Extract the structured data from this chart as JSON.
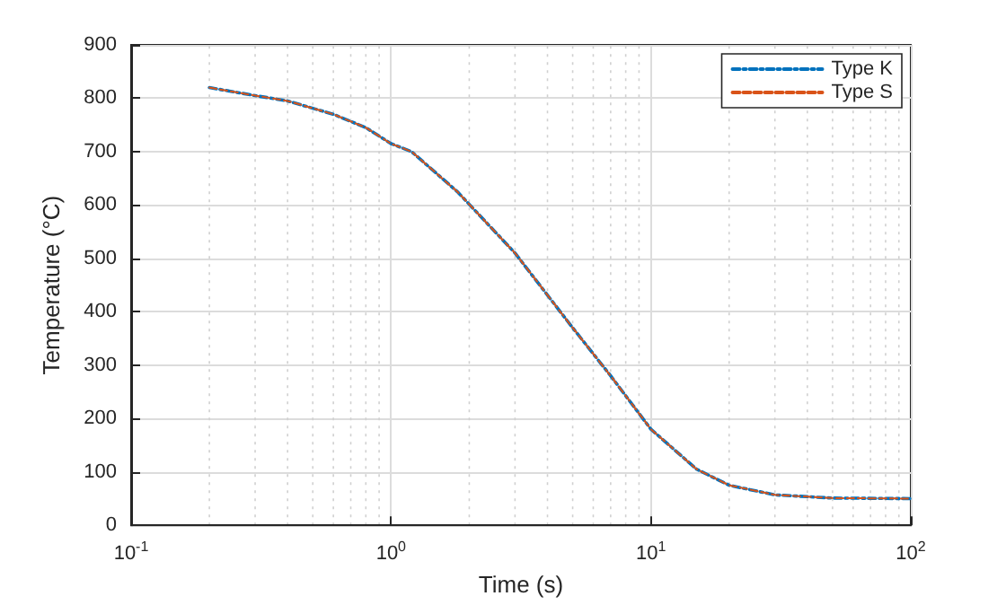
{
  "chart_data": {
    "type": "line",
    "xlabel": "Time (s)",
    "ylabel": "Temperature (°C)",
    "log": "x",
    "xlim": [
      0.1,
      100
    ],
    "ylim": [
      0,
      900
    ],
    "xticks": [
      {
        "value": 0.1,
        "label": "10$^{-1}$"
      },
      {
        "value": 1,
        "label": "10$^{0}$"
      },
      {
        "value": 10,
        "label": "10$^{1}$"
      },
      {
        "value": 100,
        "label": "10$^{2}$"
      }
    ],
    "yticks": [
      0,
      100,
      200,
      300,
      400,
      500,
      600,
      700,
      800,
      900
    ],
    "grid": true,
    "legend": "top right",
    "marker": "none",
    "x": [
      0.2,
      0.3,
      0.4,
      0.6,
      0.8,
      1,
      1.2,
      1.8,
      3,
      5,
      7,
      10,
      15,
      20,
      30,
      50,
      100
    ],
    "series": [
      {
        "name": "Type K",
        "color": "#0072bd",
        "line_style": "dashdot",
        "values": [
          820,
          805,
          795,
          770,
          745,
          715,
          700,
          625,
          510,
          370,
          280,
          180,
          105,
          75,
          57,
          51,
          50
        ]
      },
      {
        "name": "Type S",
        "color": "#d95319",
        "line_style": "dashed",
        "values": [
          820,
          805,
          795,
          770,
          745,
          715,
          700,
          625,
          510,
          370,
          280,
          180,
          105,
          75,
          57,
          51,
          50
        ]
      }
    ]
  }
}
